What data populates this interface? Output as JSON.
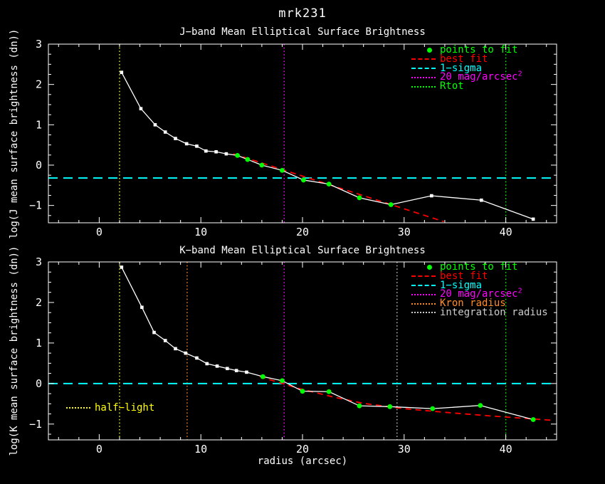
{
  "page": {
    "title": "mrk231",
    "xlabel": "radius (arcsec)",
    "background": "#000000",
    "axis_color": "#ffffff"
  },
  "chart_data": [
    {
      "type": "line",
      "band": "J",
      "title": "J−band Mean Elliptical Surface Brightness",
      "ylabel": "log(J mean surface brightness (dn))",
      "xlim": [
        -5,
        45
      ],
      "ylim": [
        -1.43,
        3
      ],
      "xticks": [
        0,
        10,
        20,
        30,
        40
      ],
      "x_minor_step": 2,
      "yticks": [
        -1,
        0,
        1,
        2,
        3
      ],
      "y_minor_step": 0.25,
      "grid": "off",
      "legend_position": "top-right",
      "profile": {
        "x": [
          2.2,
          4.1,
          5.5,
          6.5,
          7.5,
          8.6,
          9.6,
          10.5,
          11.5,
          12.5,
          13.6,
          14.6,
          16.0,
          18.0,
          20.1,
          22.6,
          25.6,
          28.7,
          32.7,
          37.6,
          42.7
        ],
        "y": [
          2.3,
          1.4,
          1.0,
          0.82,
          0.66,
          0.53,
          0.47,
          0.35,
          0.33,
          0.28,
          0.24,
          0.14,
          0.0,
          -0.13,
          -0.37,
          -0.47,
          -0.81,
          -0.98,
          -0.76,
          -0.87,
          -1.34
        ],
        "fit": [
          0,
          0,
          0,
          0,
          0,
          0,
          0,
          0,
          0,
          0,
          1,
          1,
          1,
          1,
          1,
          1,
          1,
          1,
          0,
          0,
          0
        ],
        "color": "#ffffff",
        "fit_color": "#00ff00"
      },
      "best_fit": {
        "x": [
          13.2,
          33.9
        ],
        "y": [
          0.28,
          -1.4
        ],
        "color": "#ff0000"
      },
      "sigma_line": {
        "y": -0.32,
        "color": "#00ffff"
      },
      "vlines": [
        {
          "label": "half-light radius",
          "x": 2.0,
          "color": "#ffff00"
        },
        {
          "label": "20 mag/arcsec2",
          "x": 18.2,
          "color": "#ff00ff"
        },
        {
          "label": "Rtot",
          "x": 40.0,
          "color": "#00ff00"
        }
      ],
      "legend": [
        {
          "label": "points to fit",
          "color": "#00ff00",
          "marker": "dot"
        },
        {
          "label": "best fit",
          "color": "#ff0000",
          "marker": "dashes"
        },
        {
          "label": "1−sigma",
          "color": "#00ffff",
          "marker": "dashes"
        },
        {
          "label": "20 mag/arcsec",
          "sup": "2",
          "color": "#ff00ff",
          "marker": "dots"
        },
        {
          "label": "Rtot",
          "color": "#00ff00",
          "marker": "dots"
        }
      ]
    },
    {
      "type": "line",
      "band": "K",
      "title": "K−band Mean Elliptical Surface Brightness",
      "ylabel": "log(K mean surface brightness (dn))",
      "xlim": [
        -5,
        45
      ],
      "ylim": [
        -1.39,
        3
      ],
      "xticks": [
        0,
        10,
        20,
        30,
        40
      ],
      "x_minor_step": 2,
      "yticks": [
        -1,
        0,
        1,
        2,
        3
      ],
      "y_minor_step": 0.25,
      "grid": "off",
      "legend_position": "top-right",
      "profile": {
        "x": [
          2.2,
          4.2,
          5.4,
          6.5,
          7.5,
          8.5,
          9.6,
          10.6,
          11.6,
          12.6,
          13.5,
          14.5,
          16.1,
          18.0,
          20.0,
          22.6,
          25.6,
          28.6,
          32.8,
          37.5,
          42.7
        ],
        "y": [
          2.87,
          1.88,
          1.26,
          1.06,
          0.86,
          0.75,
          0.63,
          0.49,
          0.43,
          0.37,
          0.32,
          0.28,
          0.17,
          0.07,
          -0.19,
          -0.2,
          -0.55,
          -0.57,
          -0.62,
          -0.54,
          -0.89
        ],
        "fit": [
          0,
          0,
          0,
          0,
          0,
          0,
          0,
          0,
          0,
          0,
          0,
          0,
          1,
          1,
          1,
          1,
          1,
          1,
          1,
          1,
          1
        ],
        "color": "#ffffff",
        "fit_color": "#00ff00"
      },
      "best_fit": {
        "x": [
          15.8,
          19.6,
          23.0,
          26.0,
          30.0,
          34.0,
          38.0,
          44.7
        ],
        "y": [
          0.17,
          -0.12,
          -0.33,
          -0.49,
          -0.62,
          -0.71,
          -0.79,
          -0.91
        ],
        "color": "#ff0000"
      },
      "sigma_line": {
        "y": 0.0,
        "color": "#00ffff"
      },
      "vlines": [
        {
          "label": "half-light radius",
          "x": 2.0,
          "color": "#ffff00"
        },
        {
          "label": "Kron radius",
          "x": 8.65,
          "color": "#ff8c28"
        },
        {
          "label": "20 mag/arcsec2",
          "x": 18.2,
          "color": "#ff00ff"
        },
        {
          "label": "integration radius",
          "x": 29.3,
          "color": "#cccccc"
        },
        {
          "label": "Rtot",
          "x": 40.0,
          "color": "#00ff00"
        }
      ],
      "legend": [
        {
          "label": "points to fit",
          "color": "#00ff00",
          "marker": "dot"
        },
        {
          "label": "best fit",
          "color": "#ff0000",
          "marker": "dashes"
        },
        {
          "label": "1−sigma",
          "color": "#00ffff",
          "marker": "dashes"
        },
        {
          "label": "20 mag/arcsec",
          "sup": "2",
          "color": "#ff00ff",
          "marker": "dots"
        },
        {
          "label": "Kron radius",
          "color": "#ff8c28",
          "marker": "dots"
        },
        {
          "label": "integration radius",
          "color": "#cccccc",
          "marker": "dots"
        }
      ],
      "annotation_legend": [
        {
          "label": "half−light",
          "color": "#ffff00",
          "marker": "dots"
        }
      ]
    }
  ]
}
